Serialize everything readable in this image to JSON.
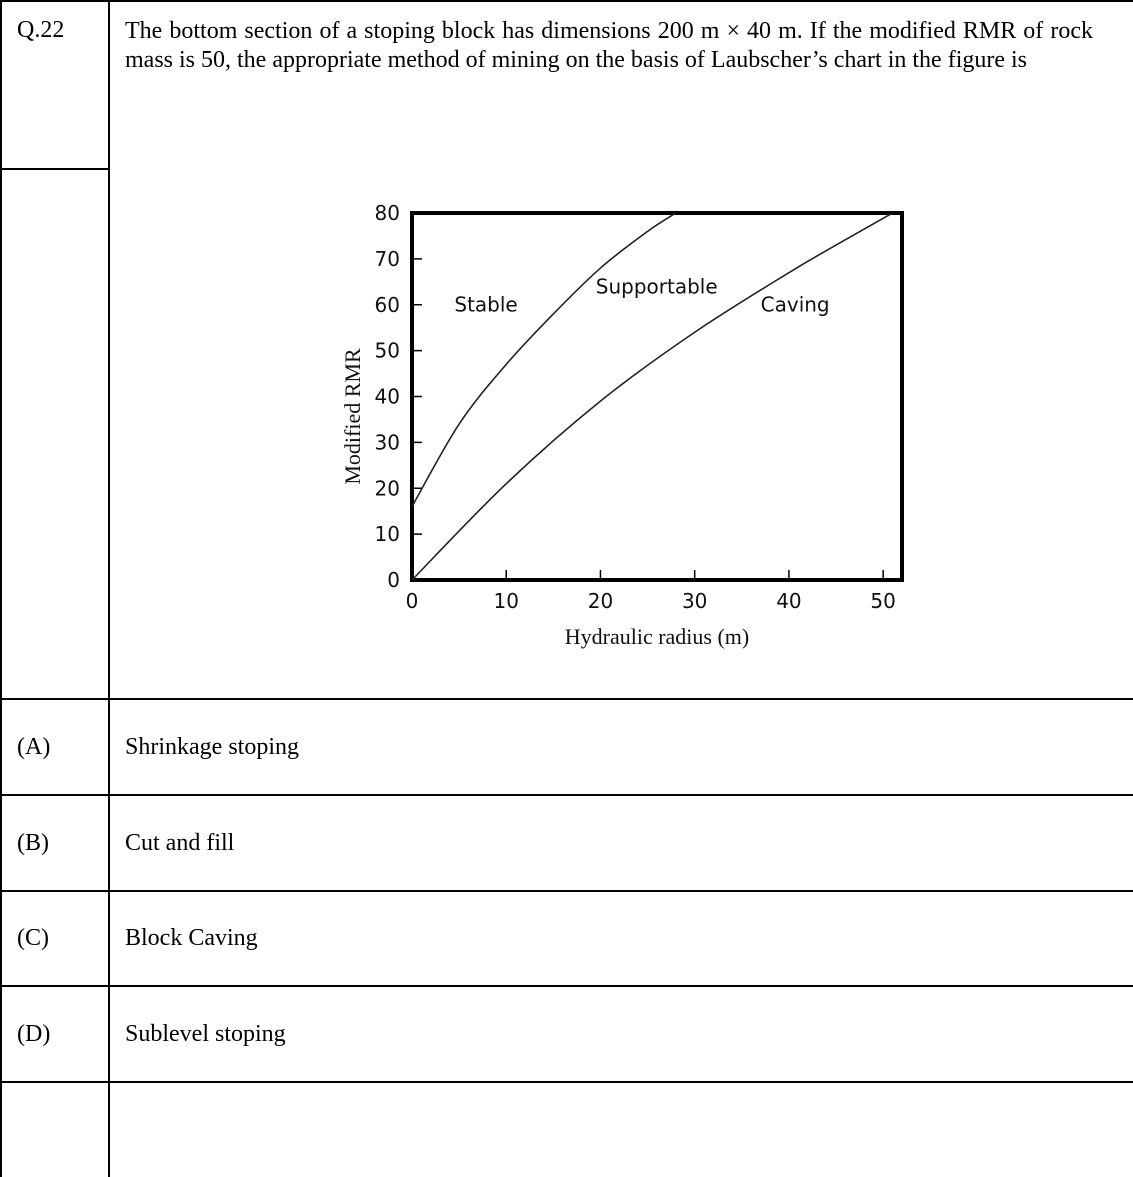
{
  "question": {
    "number": "Q.22",
    "text": "The bottom section of a stoping block has dimensions 200 m × 40 m.  If the modified RMR of rock mass is 50, the appropriate method of mining on the basis of Laubscher’s chart in the figure is"
  },
  "options": [
    {
      "label": "(A)",
      "text": "Shrinkage stoping"
    },
    {
      "label": "(B)",
      "text": "Cut and fill"
    },
    {
      "label": "(C)",
      "text": "Block Caving"
    },
    {
      "label": "(D)",
      "text": "Sublevel stoping"
    }
  ],
  "chart_data": {
    "type": "line",
    "xlabel": "Hydraulic radius (m)",
    "ylabel": "Modified RMR",
    "xlim": [
      0,
      52
    ],
    "ylim": [
      0,
      80
    ],
    "x_ticks": [
      "0",
      "10",
      "20",
      "30",
      "40",
      "50"
    ],
    "y_ticks": [
      "0",
      "10",
      "20",
      "30",
      "40",
      "50",
      "60",
      "70",
      "80"
    ],
    "regions": [
      "Stable",
      "Supportable",
      "Caving"
    ],
    "curves": [
      {
        "points": [
          [
            0,
            16
          ],
          [
            5,
            34
          ],
          [
            10,
            47
          ],
          [
            15,
            58
          ],
          [
            20,
            68
          ],
          [
            25,
            76
          ],
          [
            28,
            80
          ]
        ]
      },
      {
        "points": [
          [
            0,
            0
          ],
          [
            10,
            21
          ],
          [
            20,
            39
          ],
          [
            30,
            54
          ],
          [
            40,
            67
          ],
          [
            45,
            73
          ],
          [
            51,
            80
          ]
        ]
      }
    ],
    "grid": false
  }
}
